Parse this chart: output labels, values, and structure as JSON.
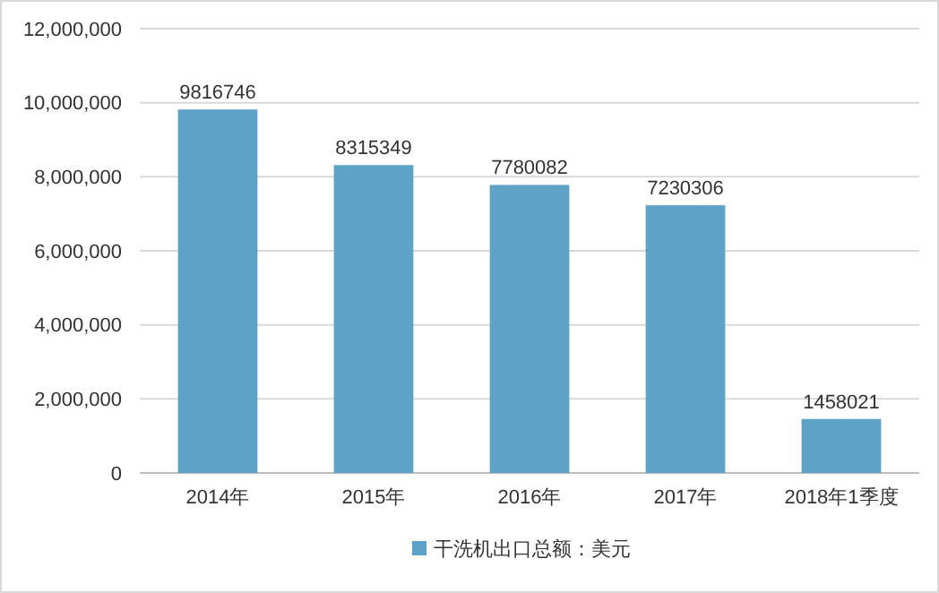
{
  "chart_data": {
    "type": "bar",
    "categories": [
      "2014年",
      "2015年",
      "2016年",
      "2017年",
      "2018年1季度"
    ],
    "series": [
      {
        "name": "干洗机出口总额：美元",
        "color": "#5ea3c7",
        "values": [
          9816746,
          8315349,
          7780082,
          7230306,
          1458021
        ]
      }
    ],
    "ylim": [
      0,
      12000000
    ],
    "yticks": [
      {
        "value": 0,
        "label": "0"
      },
      {
        "value": 2000000,
        "label": "2,000,000"
      },
      {
        "value": 4000000,
        "label": "4,000,000"
      },
      {
        "value": 6000000,
        "label": "6,000,000"
      },
      {
        "value": 8000000,
        "label": "8,000,000"
      },
      {
        "value": 10000000,
        "label": "10,000,000"
      },
      {
        "value": 12000000,
        "label": "12,000,000"
      }
    ],
    "grid": "y",
    "data_labels": true,
    "legend": "bottom"
  }
}
